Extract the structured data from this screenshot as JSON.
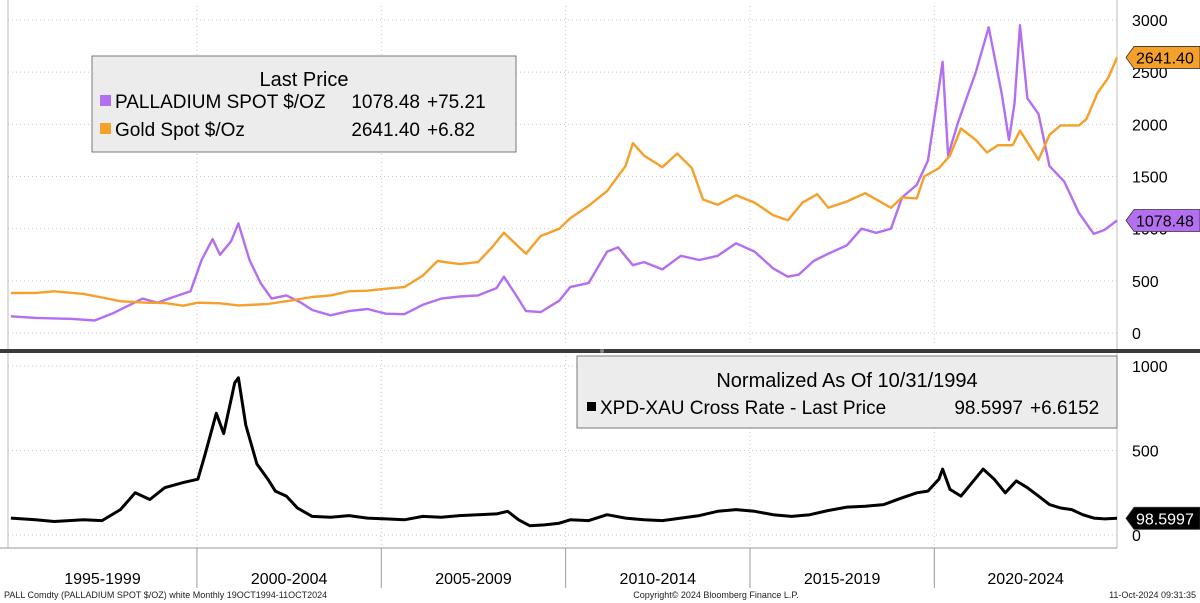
{
  "chart_data": [
    {
      "type": "line",
      "panel": "top",
      "legend_title": "Last Price",
      "ylim": [
        0,
        3000
      ],
      "y_ticks": [
        "0",
        "500",
        "1000",
        "1500",
        "2000",
        "2500",
        "3000"
      ],
      "x_range": [
        1994.75,
        2024.83
      ],
      "series": [
        {
          "name": "PALLADIUM SPOT $/OZ",
          "last": "1078.48",
          "change": "+75.21",
          "color": "#b46ef0",
          "tag": "1078.48",
          "points": [
            [
              1994.83,
              160
            ],
            [
              1995.5,
              145
            ],
            [
              1996.5,
              135
            ],
            [
              1997.1,
              120
            ],
            [
              1997.6,
              190
            ],
            [
              1998.0,
              260
            ],
            [
              1998.4,
              330
            ],
            [
              1998.8,
              290
            ],
            [
              1999.2,
              340
            ],
            [
              1999.7,
              400
            ],
            [
              2000.0,
              700
            ],
            [
              2000.3,
              900
            ],
            [
              2000.5,
              750
            ],
            [
              2000.8,
              880
            ],
            [
              2001.0,
              1050
            ],
            [
              2001.3,
              700
            ],
            [
              2001.6,
              480
            ],
            [
              2001.9,
              330
            ],
            [
              2002.3,
              360
            ],
            [
              2002.7,
              290
            ],
            [
              2003.0,
              220
            ],
            [
              2003.5,
              170
            ],
            [
              2004.0,
              210
            ],
            [
              2004.5,
              230
            ],
            [
              2005.0,
              185
            ],
            [
              2005.5,
              180
            ],
            [
              2006.0,
              270
            ],
            [
              2006.5,
              330
            ],
            [
              2007.0,
              350
            ],
            [
              2007.5,
              360
            ],
            [
              2008.0,
              430
            ],
            [
              2008.2,
              540
            ],
            [
              2008.5,
              380
            ],
            [
              2008.8,
              210
            ],
            [
              2009.2,
              200
            ],
            [
              2009.7,
              310
            ],
            [
              2010.0,
              440
            ],
            [
              2010.5,
              480
            ],
            [
              2011.0,
              780
            ],
            [
              2011.3,
              820
            ],
            [
              2011.7,
              650
            ],
            [
              2012.0,
              680
            ],
            [
              2012.5,
              610
            ],
            [
              2013.0,
              740
            ],
            [
              2013.5,
              700
            ],
            [
              2014.0,
              740
            ],
            [
              2014.5,
              860
            ],
            [
              2015.0,
              780
            ],
            [
              2015.5,
              620
            ],
            [
              2015.9,
              540
            ],
            [
              2016.2,
              560
            ],
            [
              2016.6,
              690
            ],
            [
              2017.0,
              760
            ],
            [
              2017.5,
              840
            ],
            [
              2017.9,
              1000
            ],
            [
              2018.3,
              960
            ],
            [
              2018.7,
              1000
            ],
            [
              2019.0,
              1300
            ],
            [
              2019.4,
              1420
            ],
            [
              2019.7,
              1650
            ],
            [
              2020.0,
              2350
            ],
            [
              2020.1,
              2600
            ],
            [
              2020.25,
              1700
            ],
            [
              2020.5,
              2000
            ],
            [
              2020.8,
              2300
            ],
            [
              2021.0,
              2500
            ],
            [
              2021.35,
              2930
            ],
            [
              2021.7,
              2300
            ],
            [
              2021.9,
              1850
            ],
            [
              2022.05,
              2200
            ],
            [
              2022.2,
              2950
            ],
            [
              2022.4,
              2250
            ],
            [
              2022.7,
              2100
            ],
            [
              2023.0,
              1600
            ],
            [
              2023.4,
              1450
            ],
            [
              2023.8,
              1150
            ],
            [
              2024.2,
              950
            ],
            [
              2024.5,
              990
            ],
            [
              2024.83,
              1078
            ]
          ]
        },
        {
          "name": "Gold Spot $/Oz",
          "last": "2641.40",
          "change": "+6.82",
          "color": "#f5a02a",
          "tag": "2641.40",
          "points": [
            [
              1994.83,
              383
            ],
            [
              1995.5,
              384
            ],
            [
              1996.0,
              400
            ],
            [
              1996.8,
              375
            ],
            [
              1997.3,
              340
            ],
            [
              1997.8,
              305
            ],
            [
              1998.5,
              290
            ],
            [
              1999.0,
              288
            ],
            [
              1999.5,
              262
            ],
            [
              1999.9,
              290
            ],
            [
              2000.5,
              285
            ],
            [
              2001.0,
              265
            ],
            [
              2001.8,
              278
            ],
            [
              2002.5,
              315
            ],
            [
              2003.0,
              345
            ],
            [
              2003.5,
              360
            ],
            [
              2004.0,
              400
            ],
            [
              2004.5,
              405
            ],
            [
              2005.0,
              425
            ],
            [
              2005.5,
              440
            ],
            [
              2006.0,
              550
            ],
            [
              2006.4,
              690
            ],
            [
              2007.0,
              660
            ],
            [
              2007.5,
              680
            ],
            [
              2007.9,
              830
            ],
            [
              2008.2,
              960
            ],
            [
              2008.8,
              760
            ],
            [
              2009.2,
              930
            ],
            [
              2009.7,
              1000
            ],
            [
              2010.0,
              1100
            ],
            [
              2010.5,
              1220
            ],
            [
              2011.0,
              1360
            ],
            [
              2011.5,
              1600
            ],
            [
              2011.7,
              1820
            ],
            [
              2012.0,
              1700
            ],
            [
              2012.5,
              1590
            ],
            [
              2012.9,
              1720
            ],
            [
              2013.3,
              1580
            ],
            [
              2013.6,
              1280
            ],
            [
              2014.0,
              1230
            ],
            [
              2014.5,
              1320
            ],
            [
              2015.0,
              1250
            ],
            [
              2015.5,
              1130
            ],
            [
              2015.9,
              1080
            ],
            [
              2016.3,
              1250
            ],
            [
              2016.7,
              1330
            ],
            [
              2017.0,
              1200
            ],
            [
              2017.5,
              1260
            ],
            [
              2018.0,
              1340
            ],
            [
              2018.7,
              1200
            ],
            [
              2019.0,
              1300
            ],
            [
              2019.4,
              1290
            ],
            [
              2019.6,
              1500
            ],
            [
              2020.0,
              1580
            ],
            [
              2020.3,
              1700
            ],
            [
              2020.6,
              1960
            ],
            [
              2021.0,
              1850
            ],
            [
              2021.3,
              1730
            ],
            [
              2021.6,
              1800
            ],
            [
              2022.0,
              1800
            ],
            [
              2022.2,
              1940
            ],
            [
              2022.7,
              1660
            ],
            [
              2023.0,
              1900
            ],
            [
              2023.3,
              1990
            ],
            [
              2023.8,
              1990
            ],
            [
              2024.0,
              2050
            ],
            [
              2024.3,
              2300
            ],
            [
              2024.6,
              2450
            ],
            [
              2024.83,
              2641
            ]
          ]
        }
      ]
    },
    {
      "type": "line",
      "panel": "bottom",
      "legend_title": "Normalized As Of 10/31/1994",
      "ylim": [
        0,
        1000
      ],
      "y_ticks": [
        "0",
        "500",
        "1000"
      ],
      "x_range": [
        1994.75,
        2024.83
      ],
      "series": [
        {
          "name": "XPD-XAU Cross Rate - Last Price",
          "last": "98.5997",
          "change": "+6.6152",
          "color": "#000000",
          "tag": "98.5997",
          "points": [
            [
              1994.83,
              100
            ],
            [
              1995.5,
              90
            ],
            [
              1996.0,
              80
            ],
            [
              1996.8,
              90
            ],
            [
              1997.3,
              85
            ],
            [
              1997.8,
              150
            ],
            [
              1998.2,
              250
            ],
            [
              1998.6,
              210
            ],
            [
              1999.0,
              280
            ],
            [
              1999.5,
              310
            ],
            [
              1999.9,
              330
            ],
            [
              2000.1,
              480
            ],
            [
              2000.4,
              720
            ],
            [
              2000.6,
              600
            ],
            [
              2000.9,
              900
            ],
            [
              2001.0,
              930
            ],
            [
              2001.2,
              650
            ],
            [
              2001.5,
              420
            ],
            [
              2001.8,
              330
            ],
            [
              2002.0,
              260
            ],
            [
              2002.3,
              230
            ],
            [
              2002.6,
              160
            ],
            [
              2003.0,
              110
            ],
            [
              2003.5,
              105
            ],
            [
              2004.0,
              115
            ],
            [
              2004.5,
              100
            ],
            [
              2005.0,
              95
            ],
            [
              2005.5,
              90
            ],
            [
              2006.0,
              110
            ],
            [
              2006.5,
              105
            ],
            [
              2007.0,
              115
            ],
            [
              2007.5,
              120
            ],
            [
              2008.0,
              125
            ],
            [
              2008.3,
              140
            ],
            [
              2008.6,
              90
            ],
            [
              2008.9,
              55
            ],
            [
              2009.3,
              60
            ],
            [
              2009.7,
              70
            ],
            [
              2010.0,
              90
            ],
            [
              2010.5,
              85
            ],
            [
              2011.0,
              120
            ],
            [
              2011.5,
              100
            ],
            [
              2012.0,
              90
            ],
            [
              2012.5,
              85
            ],
            [
              2013.0,
              100
            ],
            [
              2013.5,
              115
            ],
            [
              2014.0,
              140
            ],
            [
              2014.5,
              150
            ],
            [
              2015.0,
              140
            ],
            [
              2015.5,
              120
            ],
            [
              2016.0,
              110
            ],
            [
              2016.5,
              120
            ],
            [
              2017.0,
              145
            ],
            [
              2017.5,
              165
            ],
            [
              2018.0,
              170
            ],
            [
              2018.5,
              180
            ],
            [
              2019.0,
              220
            ],
            [
              2019.4,
              250
            ],
            [
              2019.7,
              260
            ],
            [
              2020.0,
              330
            ],
            [
              2020.1,
              390
            ],
            [
              2020.3,
              270
            ],
            [
              2020.6,
              230
            ],
            [
              2020.9,
              310
            ],
            [
              2021.2,
              390
            ],
            [
              2021.5,
              330
            ],
            [
              2021.8,
              250
            ],
            [
              2022.1,
              320
            ],
            [
              2022.4,
              280
            ],
            [
              2022.7,
              230
            ],
            [
              2023.0,
              180
            ],
            [
              2023.3,
              160
            ],
            [
              2023.6,
              150
            ],
            [
              2023.9,
              120
            ],
            [
              2024.2,
              100
            ],
            [
              2024.5,
              95
            ],
            [
              2024.83,
              98.6
            ]
          ]
        }
      ]
    }
  ],
  "periods": [
    "1995-1999",
    "2000-2004",
    "2005-2009",
    "2010-2014",
    "2015-2019",
    "2020-2024"
  ],
  "footer": {
    "left": "PALL Comdty (PALLADIUM SPOT $/OZ) white  Monthly 19OCT1994-11OCT2024",
    "center": "Copyright© 2024 Bloomberg Finance L.P.",
    "right": "11-Oct-2024 09:31:35"
  },
  "colors": {
    "divider": "#3a3a3a",
    "grid": "#c8c8c8",
    "legend_bg": "#ececec",
    "legend_border": "#7a7a7a"
  }
}
